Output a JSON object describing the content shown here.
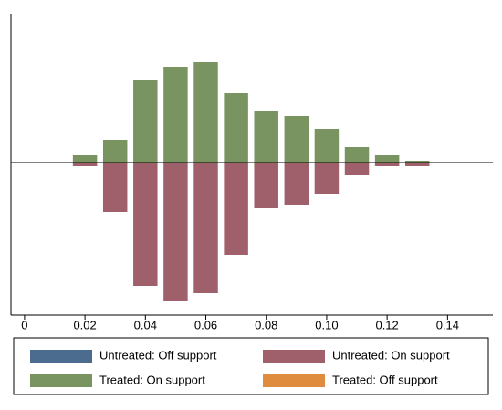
{
  "chart_data": {
    "type": "histogram",
    "bins": [
      0.015,
      0.025,
      0.035,
      0.045,
      0.055,
      0.065,
      0.075,
      0.085,
      0.095,
      0.105,
      0.115,
      0.125,
      0.135
    ],
    "series": [
      {
        "name": "Untreated: Off support",
        "color": "#4b6b8f",
        "values": [
          0,
          0,
          0,
          0,
          0,
          0,
          0,
          0,
          0,
          0,
          0,
          0
        ]
      },
      {
        "name": "Untreated: On support",
        "color": "#a0606b",
        "values": [
          -0.4,
          -5.4,
          -13.5,
          -15.2,
          -14.3,
          -10.1,
          -5.0,
          -4.7,
          -3.4,
          -1.4,
          -0.4,
          -0.4
        ]
      },
      {
        "name": "Treated: On support",
        "color": "#7a9461",
        "values": [
          0.8,
          2.5,
          9.0,
          10.5,
          11.0,
          7.6,
          5.6,
          5.1,
          3.7,
          1.7,
          0.8,
          0.2
        ]
      },
      {
        "name": "Treated: Off support",
        "color": "#e08c3e",
        "values": [
          0,
          0,
          0,
          0,
          0,
          0,
          0,
          0,
          0,
          0,
          0,
          0
        ]
      }
    ],
    "xlim": [
      -0.0045,
      0.155
    ],
    "ylim": [
      -16.7,
      16.3
    ],
    "xticks": [
      0,
      0.02,
      0.04,
      0.06,
      0.08,
      {
        "value": 0.1,
        "label": "0.10"
      },
      0.12,
      0.14
    ]
  }
}
